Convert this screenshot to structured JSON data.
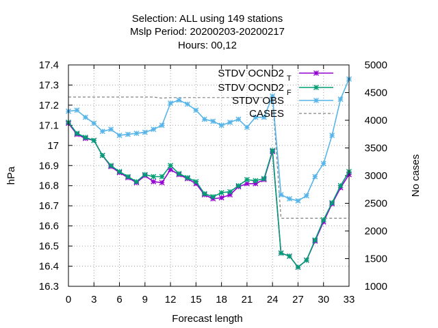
{
  "title_lines": [
    "Selection: ALL using   149 stations",
    "Mslp   Period: 20200203-20200217",
    "Hours:  00,12"
  ],
  "chart_data": {
    "type": "line",
    "xlabel": "Forecast length",
    "ylabel": "hPa",
    "y2label": "No cases",
    "xlim": [
      0,
      33
    ],
    "ylim": [
      16.3,
      17.4
    ],
    "y2lim": [
      1000,
      5000
    ],
    "xticks": [
      "0",
      "3",
      "6",
      "9",
      "12",
      "15",
      "18",
      "21",
      "24",
      "27",
      "30",
      "33"
    ],
    "yticks": [
      "16.3",
      "16.4",
      "16.5",
      "16.6",
      "16.7",
      "16.8",
      "16.9",
      "17",
      "17.1",
      "17.2",
      "17.3",
      "17.4"
    ],
    "y2ticks": [
      "1000",
      "1500",
      "2000",
      "2500",
      "3000",
      "3500",
      "4000",
      "4500",
      "5000"
    ],
    "grid": true,
    "legend_position": "top-right",
    "x": [
      0,
      1,
      2,
      3,
      4,
      5,
      6,
      7,
      8,
      9,
      10,
      11,
      12,
      13,
      14,
      15,
      16,
      17,
      18,
      19,
      20,
      21,
      22,
      23,
      24,
      25,
      26,
      27,
      28,
      29,
      30,
      31,
      32,
      33
    ],
    "series": [
      {
        "name": "STDV OCND2",
        "subscript": "T",
        "color": "#9400d3",
        "axis": "y",
        "values": [
          17.11,
          17.055,
          17.035,
          17.025,
          16.95,
          16.895,
          16.865,
          16.84,
          16.815,
          16.85,
          16.82,
          16.815,
          16.88,
          16.855,
          16.835,
          16.81,
          16.755,
          16.735,
          16.74,
          16.755,
          16.795,
          16.81,
          16.81,
          16.83,
          16.97,
          16.465,
          16.45,
          16.395,
          16.43,
          16.525,
          16.62,
          16.71,
          16.79,
          16.855
        ]
      },
      {
        "name": "STDV OCND2",
        "subscript": "F",
        "color": "#009e73",
        "axis": "y",
        "values": [
          17.115,
          17.06,
          17.04,
          17.025,
          16.95,
          16.9,
          16.87,
          16.845,
          16.82,
          16.855,
          16.845,
          16.845,
          16.9,
          16.86,
          16.84,
          16.82,
          16.76,
          16.745,
          16.765,
          16.77,
          16.8,
          16.83,
          16.825,
          16.835,
          16.975,
          16.465,
          16.45,
          16.395,
          16.43,
          16.53,
          16.63,
          16.715,
          16.8,
          16.87
        ]
      },
      {
        "name": "STDV OBS",
        "subscript": "",
        "color": "#56b4e9",
        "axis": "y",
        "values": [
          17.17,
          17.175,
          17.14,
          17.11,
          17.07,
          17.08,
          17.05,
          17.055,
          17.06,
          17.065,
          17.08,
          17.1,
          17.21,
          17.225,
          17.205,
          17.175,
          17.13,
          17.12,
          17.1,
          17.115,
          17.13,
          17.09,
          17.14,
          17.14,
          17.245,
          16.755,
          16.735,
          16.725,
          16.75,
          16.845,
          16.91,
          17.05,
          17.23,
          17.33
        ]
      },
      {
        "name": "CASES",
        "subscript": "",
        "color": "#808080",
        "axis": "y2",
        "values": [
          4420,
          4420,
          4420,
          4420,
          4420,
          4420,
          4420,
          4420,
          4420,
          4420,
          4420,
          4400,
          4410,
          4410,
          4410,
          4410,
          4410,
          4410,
          4410,
          4410,
          4410,
          4410,
          4410,
          4410,
          4410,
          2230,
          2230,
          2230,
          2230,
          2230,
          2230,
          2230,
          2230,
          2230
        ]
      }
    ]
  }
}
